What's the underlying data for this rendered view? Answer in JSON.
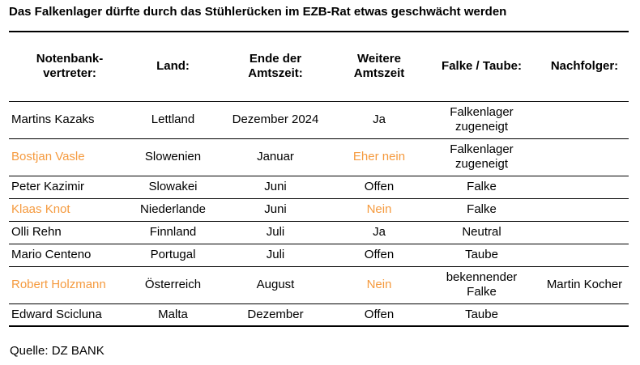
{
  "title": "Das Falkenlager dürfte durch das Stühlerücken im EZB-Rat etwas geschwächt werden",
  "headers": [
    [
      "Notenbank-",
      "vertreter:"
    ],
    [
      "Land:"
    ],
    [
      "Ende der",
      "Amtszeit:"
    ],
    [
      "Weitere",
      "Amtszeit"
    ],
    [
      "Falke / Taube:"
    ],
    [
      "Nachfolger:"
    ]
  ],
  "rows": [
    {
      "name": "Martins Kazaks",
      "land": "Lettland",
      "ende": "Dezember 2024",
      "weitere": "Ja",
      "falke": [
        "Falkenlager",
        "zugeneigt"
      ],
      "nachfolger": "",
      "highlight": false
    },
    {
      "name": "Bostjan Vasle",
      "land": "Slowenien",
      "ende": "Januar",
      "weitere": "Eher nein",
      "falke": [
        "Falkenlager",
        "zugeneigt"
      ],
      "nachfolger": "",
      "highlight": true
    },
    {
      "name": "Peter Kazimir",
      "land": "Slowakei",
      "ende": "Juni",
      "weitere": "Offen",
      "falke": [
        "Falke"
      ],
      "nachfolger": "",
      "highlight": false
    },
    {
      "name": "Klaas Knot",
      "land": "Niederlande",
      "ende": "Juni",
      "weitere": "Nein",
      "falke": [
        "Falke"
      ],
      "nachfolger": "",
      "highlight": true
    },
    {
      "name": "Olli Rehn",
      "land": "Finnland",
      "ende": "Juli",
      "weitere": "Ja",
      "falke": [
        "Neutral"
      ],
      "nachfolger": "",
      "highlight": false
    },
    {
      "name": "Mario Centeno",
      "land": "Portugal",
      "ende": "Juli",
      "weitere": "Offen",
      "falke": [
        "Taube"
      ],
      "nachfolger": "",
      "highlight": false
    },
    {
      "name": "Robert Holzmann",
      "land": "Österreich",
      "ende": "August",
      "weitere": "Nein",
      "falke": [
        "bekennender",
        "Falke"
      ],
      "nachfolger": "Martin Kocher",
      "highlight": true
    },
    {
      "name": "Edward Scicluna",
      "land": "Malta",
      "ende": "Dezember",
      "weitere": "Offen",
      "falke": [
        "Taube"
      ],
      "nachfolger": "",
      "highlight": false
    }
  ],
  "highlight_color": "#F59A3E",
  "source": "Quelle: DZ BANK"
}
